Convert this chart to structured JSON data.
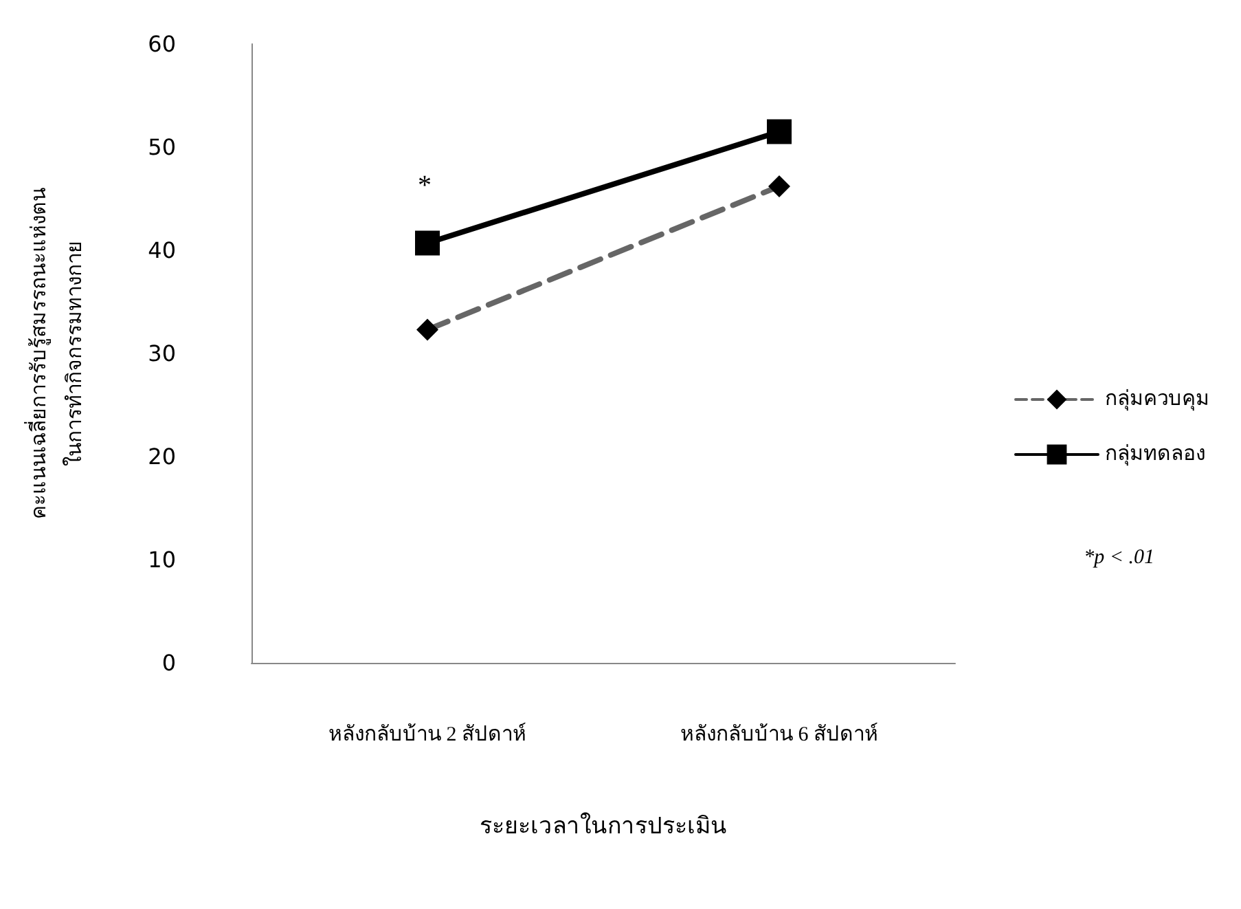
{
  "chart_data": {
    "type": "line",
    "xlabel": "ระยะเวลาในการประเมิน",
    "ylabel": "คะแนนเฉลี่ยการรับรู้สมรรถนะแห่งตน\nในการทำกิจกรรมทางกาย",
    "categories": [
      "หลังกลับบ้าน 2 สัปดาห์",
      "หลังกลับบ้าน 6 สัปดาห์"
    ],
    "series": [
      {
        "name": "กลุ่มควบคุม",
        "color": "#666666",
        "values": [
          32.3,
          46.2
        ],
        "marker": "diamond",
        "line_style": "dashed"
      },
      {
        "name": "กลุ่มทดลอง",
        "color": "#000000",
        "values": [
          40.7,
          51.5
        ],
        "marker": "square",
        "line_style": "solid"
      }
    ],
    "ylim": [
      0,
      60
    ],
    "yticks": [
      0,
      10,
      20,
      30,
      40,
      50,
      60
    ],
    "grid": false,
    "legend": "right",
    "annotations": [
      "*",
      "*p < .01"
    ]
  }
}
